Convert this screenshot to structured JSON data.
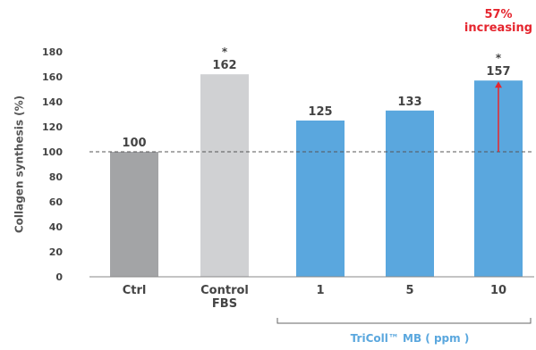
{
  "chart_data": {
    "type": "bar",
    "title": "",
    "xlabel": "",
    "ylabel": "Collagen synthesis (%)",
    "ylim": [
      0,
      180
    ],
    "yticks": [
      0,
      20,
      40,
      60,
      80,
      100,
      120,
      140,
      160,
      180
    ],
    "grid": false,
    "categories": [
      "Ctrl",
      "Control FBS",
      "1",
      "5",
      "10"
    ],
    "category_lines": [
      [
        "Ctrl"
      ],
      [
        "Control",
        "FBS"
      ],
      [
        "1"
      ],
      [
        "5"
      ],
      [
        "10"
      ]
    ],
    "values": [
      100,
      162,
      125,
      133,
      157
    ],
    "value_labels": [
      "100",
      "162",
      "125",
      "133",
      "157"
    ],
    "significance": [
      "",
      "*",
      "",
      "",
      "*"
    ],
    "bar_colors": [
      "#a3a4a6",
      "#d0d1d3",
      "#5aa7de",
      "#5aa7de",
      "#5aa7de"
    ],
    "reference_line": {
      "value": 100,
      "style": "dashed",
      "color": "#555555"
    },
    "group_label": "TriColl™ MB ( ppm )",
    "group_label_color": "#5aa7de",
    "group_categories": [
      "1",
      "5",
      "10"
    ],
    "annotation": {
      "lines": [
        "57%",
        "increasing"
      ],
      "color": "#e5252e",
      "category": "10",
      "arrow_from": 100,
      "arrow_to": 157
    }
  }
}
